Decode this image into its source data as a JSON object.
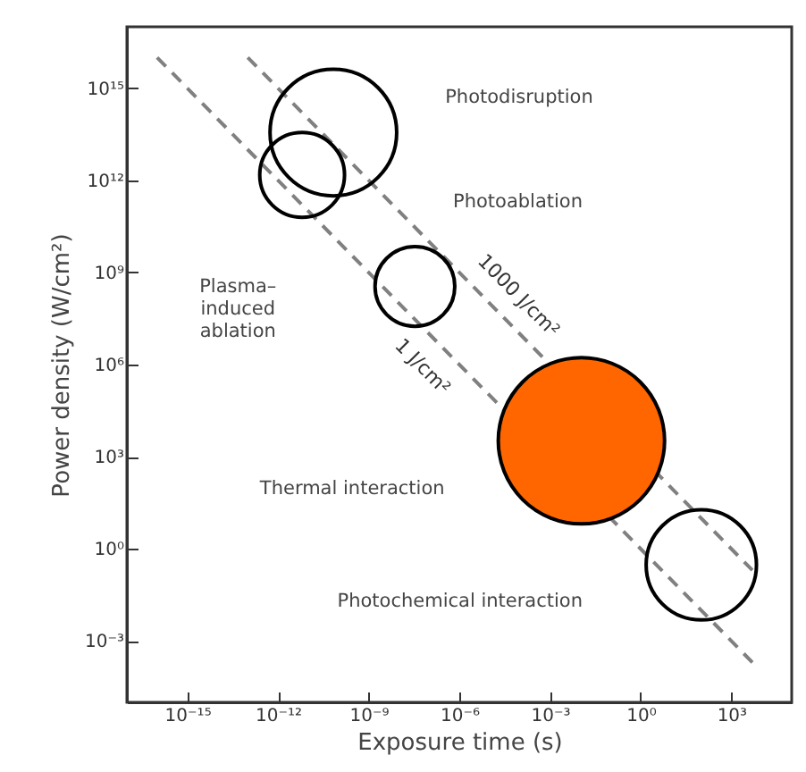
{
  "chart_data": {
    "type": "bubble",
    "xlabel": "Exposure time (s)",
    "ylabel": "Power density (W/cm²)",
    "log": "xy",
    "grid": false,
    "xlim": [
      1e-17,
      100000.0
    ],
    "ylim": [
      1e-05,
      1e+17
    ],
    "xticks": [
      {
        "value": 1e-15,
        "label": "10⁻¹⁵"
      },
      {
        "value": 1e-12,
        "label": "10⁻¹²"
      },
      {
        "value": 1e-09,
        "label": "10⁻⁹"
      },
      {
        "value": 1e-06,
        "label": "10⁻⁶"
      },
      {
        "value": 0.001,
        "label": "10⁻³"
      },
      {
        "value": 1,
        "label": "10⁰"
      },
      {
        "value": 1000,
        "label": "10³"
      }
    ],
    "yticks": [
      {
        "value": 0.001,
        "label": "10⁻³"
      },
      {
        "value": 1,
        "label": "10⁰"
      },
      {
        "value": 1000,
        "label": "10³"
      },
      {
        "value": 1000000.0,
        "label": "10⁶"
      },
      {
        "value": 1000000000.0,
        "label": "10⁹"
      },
      {
        "value": 1000000000000.0,
        "label": "10¹²"
      },
      {
        "value": 1000000000000000.0,
        "label": "10¹⁵"
      }
    ],
    "series": [
      {
        "name": "1 J/cm²",
        "type": "line",
        "line_style": "dashed",
        "color": "#808080",
        "x": [
          1e-16,
          5000
        ],
        "values": [
          1e+16,
          0.0002
        ]
      },
      {
        "name": "1000 J/cm²",
        "type": "line",
        "line_style": "dashed",
        "color": "#808080",
        "x": [
          1e-13,
          5000
        ],
        "values": [
          1e+16,
          0.2
        ]
      },
      {
        "color": "#000000",
        "x": [
          6.8e-11,
          6.3e-12,
          3.4e-08,
          102
        ],
        "values": [
          36000000000000.0,
          1500000000000.0,
          350000000.0,
          0.3
        ],
        "sizes": [
          0.58,
          0.26,
          0.23,
          0.44
        ]
      },
      {
        "color": "#ff6600",
        "x": [
          0.011
        ],
        "values": [
          3300
        ],
        "sizes": [
          1
        ]
      }
    ],
    "annotations": [
      "Photodisruption",
      "Photoablation",
      "Plasma–\ninduced\nablation",
      "Thermal interaction",
      "Photochemical interaction"
    ]
  }
}
